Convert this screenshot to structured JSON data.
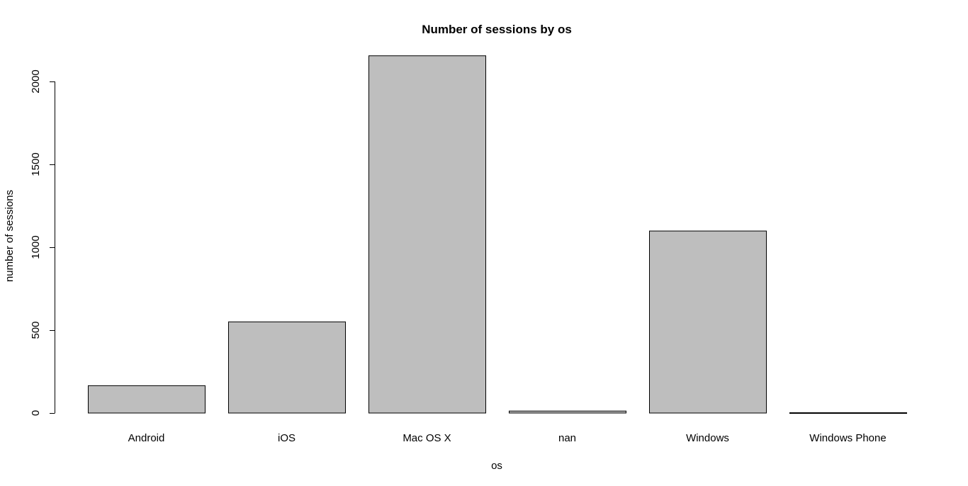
{
  "chart_data": {
    "type": "bar",
    "title": "Number of sessions by os",
    "xlabel": "os",
    "ylabel": "number of sessions",
    "categories": [
      "Android",
      "iOS",
      "Mac OS X",
      "nan",
      "Windows",
      "Windows Phone"
    ],
    "values": [
      165,
      550,
      2155,
      12,
      1098,
      2
    ],
    "ylim": [
      0,
      2000
    ],
    "yticks": [
      0,
      500,
      1000,
      1500,
      2000
    ],
    "grid": false,
    "bar_color": "#bebebe",
    "bar_border_color": "#000000"
  }
}
